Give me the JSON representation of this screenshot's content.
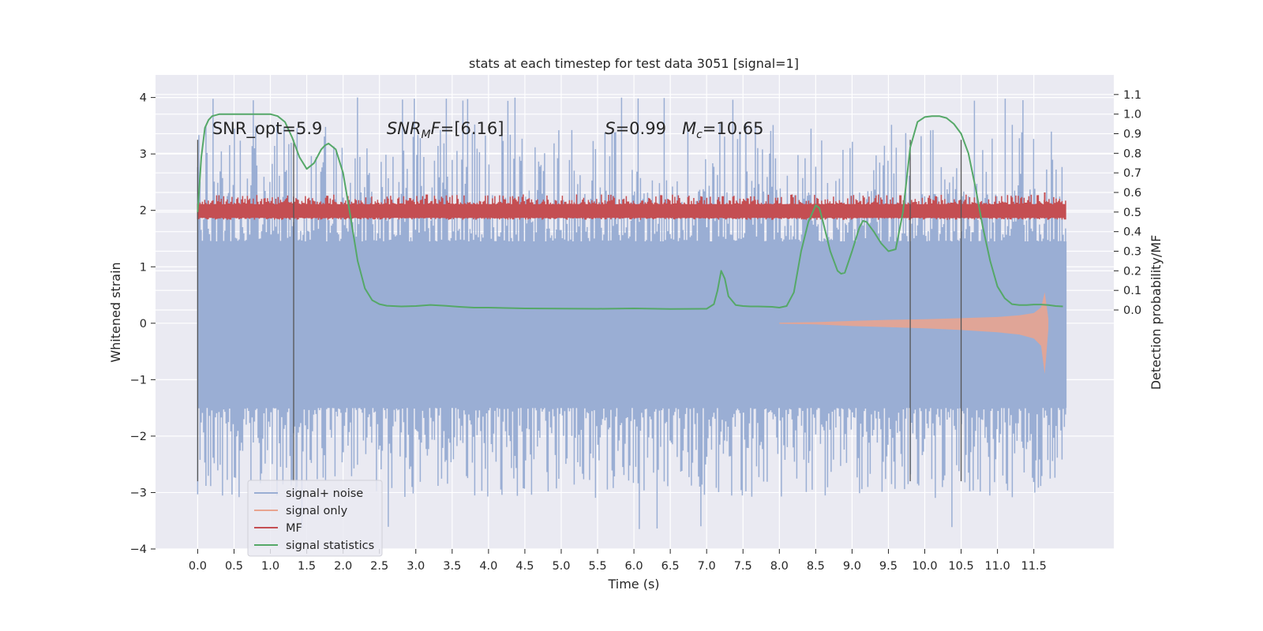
{
  "chart_data": {
    "type": "line",
    "title": "stats at each timestep for test data 3051 [signal=1]",
    "xlabel": "Time (s)",
    "ylabel": "Whitened strain",
    "ylabel_right": "Detection probability/MF",
    "xlim": [
      -0.58,
      12.6
    ],
    "ylim": [
      -4.0,
      4.4
    ],
    "ylim_right": [
      -1.22,
      1.2
    ],
    "x_ticks": [
      0.0,
      0.5,
      1.0,
      1.5,
      2.0,
      2.5,
      3.0,
      3.5,
      4.0,
      4.5,
      5.0,
      5.5,
      6.0,
      6.5,
      7.0,
      7.5,
      8.0,
      8.5,
      9.0,
      9.5,
      10.0,
      10.5,
      11.0,
      11.5
    ],
    "x_tick_labels": [
      "0.0",
      "0.5",
      "1.0",
      "1.5",
      "2.0",
      "2.5",
      "3.0",
      "3.5",
      "4.0",
      "4.5",
      "5.0",
      "5.5",
      "6.0",
      "6.5",
      "7.0",
      "7.5",
      "8.0",
      "8.5",
      "9.0",
      "9.5",
      "10.0",
      "10.5",
      "11.0",
      "11.5"
    ],
    "y_ticks": [
      -4,
      -3,
      -2,
      -1,
      0,
      1,
      2,
      3,
      4
    ],
    "y_tick_labels": [
      "−4",
      "−3",
      "−2",
      "−1",
      "0",
      "1",
      "2",
      "3",
      "4"
    ],
    "y_right_ticks": [
      0.0,
      0.1,
      0.2,
      0.3,
      0.4,
      0.5,
      0.6,
      0.7,
      0.8,
      0.9,
      1.0,
      1.1
    ],
    "y_right_tick_labels": [
      "0.0",
      "0.1",
      "0.2",
      "0.3",
      "0.4",
      "0.5",
      "0.6",
      "0.7",
      "0.8",
      "0.9",
      "1.0",
      "1.1"
    ],
    "grid": true,
    "legend_position": "lower-left",
    "colors": {
      "background": "#eaeaf2",
      "grid": "#ffffff",
      "noise": "#9aaed4",
      "signal": "#e8a490",
      "mf": "#c44e52",
      "stat": "#55a868",
      "vline": "#555555"
    },
    "annotations": [
      {
        "parts": [
          {
            "text": "SNR_opt=5.9"
          }
        ],
        "x": 0.2,
        "y": 3.35
      },
      {
        "parts": [
          {
            "text": "SNR",
            "italic": true
          },
          {
            "text": "M",
            "italic": true,
            "sub": true
          },
          {
            "text": "F",
            "italic": true
          },
          {
            "text": "=[6.16]"
          }
        ],
        "x": 2.6,
        "y": 3.35
      },
      {
        "parts": [
          {
            "text": "S",
            "italic": true
          },
          {
            "text": "=0.99   "
          },
          {
            "text": "M",
            "italic": true
          },
          {
            "text": "c",
            "italic": true,
            "sub": true
          },
          {
            "text": "=10.65"
          }
        ],
        "x": 5.6,
        "y": 3.35
      }
    ],
    "vlines": [
      0.0,
      1.32,
      9.8,
      10.5
    ],
    "vline_range": [
      -2.8,
      3.25
    ],
    "series": [
      {
        "name": "signal+ noise",
        "kind": "noise",
        "x_range": [
          0.0,
          11.95
        ],
        "band_upper": 1.45,
        "band_lower": -1.5,
        "peak_max": 4.1,
        "peak_min": -3.65
      },
      {
        "name": "signal only",
        "kind": "chirp",
        "x": [
          8.0,
          8.5,
          9.0,
          9.5,
          10.0,
          10.5,
          11.0,
          11.3,
          11.5,
          11.6,
          11.65,
          11.7
        ],
        "y_upper": [
          0.01,
          0.02,
          0.04,
          0.06,
          0.07,
          0.09,
          0.11,
          0.14,
          0.18,
          0.28,
          0.55,
          0.08
        ],
        "y_lower": [
          -0.01,
          -0.02,
          -0.05,
          -0.07,
          -0.09,
          -0.12,
          -0.16,
          -0.2,
          -0.27,
          -0.4,
          -0.9,
          -0.1
        ]
      },
      {
        "name": "MF",
        "kind": "band",
        "axis": "right",
        "x_range": [
          0.0,
          11.95
        ],
        "center": 0.5,
        "upper": 0.54,
        "lower": 0.47,
        "spike": {
          "x": 11.65,
          "y": 0.6
        }
      },
      {
        "name": "signal statistics",
        "kind": "line",
        "axis": "right",
        "x": [
          0.0,
          0.05,
          0.1,
          0.15,
          0.2,
          0.3,
          0.4,
          0.5,
          0.6,
          0.7,
          0.8,
          0.9,
          1.0,
          1.1,
          1.2,
          1.3,
          1.4,
          1.5,
          1.6,
          1.7,
          1.75,
          1.8,
          1.9,
          2.0,
          2.1,
          2.2,
          2.3,
          2.4,
          2.5,
          2.6,
          2.8,
          3.0,
          3.2,
          3.4,
          3.6,
          3.8,
          4.0,
          4.5,
          5.0,
          5.5,
          6.0,
          6.5,
          7.0,
          7.1,
          7.15,
          7.2,
          7.25,
          7.3,
          7.4,
          7.5,
          7.6,
          7.7,
          7.8,
          7.9,
          8.0,
          8.1,
          8.2,
          8.3,
          8.4,
          8.5,
          8.55,
          8.6,
          8.7,
          8.8,
          8.85,
          8.9,
          9.0,
          9.1,
          9.15,
          9.2,
          9.3,
          9.4,
          9.5,
          9.6,
          9.7,
          9.8,
          9.9,
          10.0,
          10.1,
          10.2,
          10.3,
          10.4,
          10.5,
          10.6,
          10.7,
          10.8,
          10.9,
          11.0,
          11.1,
          11.2,
          11.3,
          11.4,
          11.5,
          11.6,
          11.7,
          11.8,
          11.9
        ],
        "y": [
          0.5,
          0.78,
          0.93,
          0.97,
          0.99,
          1.0,
          1.0,
          1.0,
          1.0,
          1.0,
          1.0,
          1.0,
          1.0,
          0.99,
          0.96,
          0.88,
          0.78,
          0.72,
          0.75,
          0.82,
          0.84,
          0.85,
          0.82,
          0.7,
          0.48,
          0.25,
          0.11,
          0.05,
          0.03,
          0.022,
          0.018,
          0.02,
          0.026,
          0.022,
          0.016,
          0.012,
          0.012,
          0.008,
          0.007,
          0.006,
          0.008,
          0.005,
          0.006,
          0.03,
          0.1,
          0.2,
          0.16,
          0.07,
          0.025,
          0.02,
          0.018,
          0.018,
          0.017,
          0.016,
          0.012,
          0.02,
          0.09,
          0.3,
          0.45,
          0.535,
          0.52,
          0.45,
          0.3,
          0.2,
          0.185,
          0.19,
          0.3,
          0.42,
          0.455,
          0.45,
          0.4,
          0.34,
          0.3,
          0.31,
          0.5,
          0.83,
          0.96,
          0.985,
          0.99,
          0.99,
          0.98,
          0.95,
          0.9,
          0.8,
          0.62,
          0.42,
          0.25,
          0.12,
          0.06,
          0.03,
          0.025,
          0.025,
          0.028,
          0.028,
          0.025,
          0.02,
          0.018
        ]
      }
    ]
  }
}
